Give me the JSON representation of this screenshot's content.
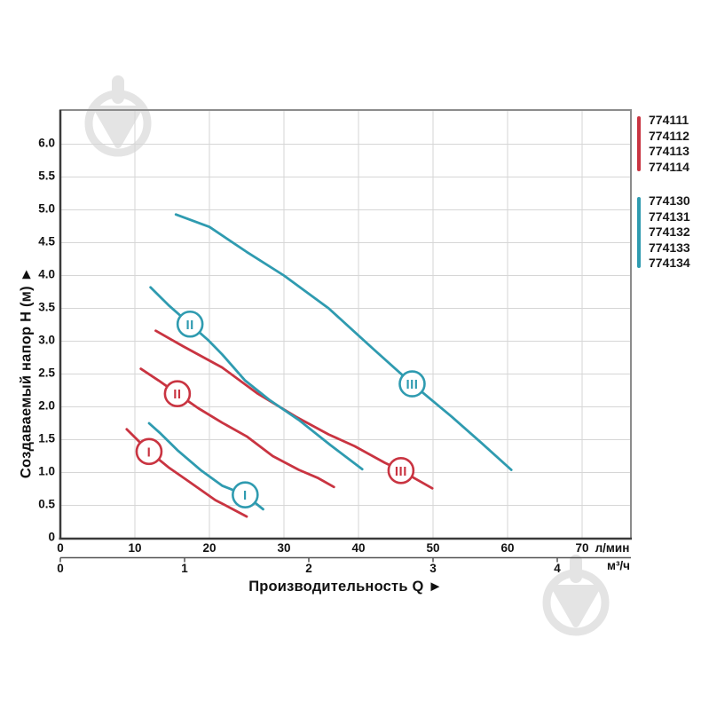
{
  "page": {
    "background": "#ffffff",
    "description_title": ""
  },
  "colors": {
    "red_series": "#c93441",
    "blue_series": "#2f9bb0",
    "grid": "#d6d6d6",
    "outer_border": "#8c8c8c",
    "axis": "#3a3a3a",
    "text": "#111111",
    "watermark": "#e4e4e4"
  },
  "legend": {
    "groups": [
      {
        "color": "#c93441",
        "models": [
          "774111",
          "774112",
          "774113",
          "774114"
        ]
      },
      {
        "color": "#2f9bb0",
        "models": [
          "774130",
          "774131",
          "774132",
          "774133",
          "774134"
        ]
      }
    ]
  },
  "chart_data": {
    "type": "line",
    "title": "",
    "xlabel": "Производительность Q ►",
    "ylabel": "Создаваемый напор H (м) ►",
    "grid": true,
    "x_axis_primary": {
      "unit": "л/мин",
      "tick_labels": [
        "0",
        "10",
        "20",
        "30",
        "40",
        "50",
        "60",
        "70"
      ],
      "tick_values": [
        0,
        10,
        20,
        30,
        40,
        50,
        60,
        70
      ],
      "xlim": [
        0,
        76.5
      ]
    },
    "x_axis_secondary": {
      "unit": "м³/ч",
      "tick_labels": [
        "0",
        "1",
        "2",
        "3",
        "4"
      ],
      "tick_values": [
        0,
        1,
        2,
        3,
        4
      ],
      "tick_values_in_lmin": [
        0,
        16.667,
        33.333,
        50,
        66.667
      ]
    },
    "y_axis": {
      "unit": "м",
      "tick_labels": [
        "0",
        "0.5",
        "1.0",
        "1.5",
        "2.0",
        "2.5",
        "3.0",
        "3.5",
        "4.0",
        "4.5",
        "5.0",
        "5.5",
        "6.0"
      ],
      "tick_values": [
        0,
        0.5,
        1,
        1.5,
        2,
        2.5,
        3,
        3.5,
        4,
        4.5,
        5,
        5.5,
        6
      ],
      "ylim": [
        0,
        6.53
      ]
    },
    "series": [
      {
        "id": "red-speed-I",
        "models": "774111-774114",
        "speed": "I",
        "color": "#c93441",
        "points": [
          [
            8.9,
            1.66
          ],
          [
            11.9,
            1.32
          ],
          [
            14.5,
            1.08
          ],
          [
            16.9,
            0.89
          ],
          [
            20.8,
            0.58
          ],
          [
            23.0,
            0.45
          ],
          [
            25.0,
            0.33
          ]
        ],
        "marker_at": [
          11.9,
          1.32
        ]
      },
      {
        "id": "red-speed-II",
        "models": "774111-774114",
        "speed": "II",
        "color": "#c93441",
        "points": [
          [
            10.8,
            2.58
          ],
          [
            13.2,
            2.4
          ],
          [
            15.7,
            2.2
          ],
          [
            18.5,
            1.98
          ],
          [
            21.7,
            1.76
          ],
          [
            25.0,
            1.55
          ],
          [
            28.5,
            1.25
          ],
          [
            32.0,
            1.04
          ],
          [
            34.5,
            0.92
          ],
          [
            36.7,
            0.78
          ]
        ],
        "marker_at": [
          15.7,
          2.2
        ]
      },
      {
        "id": "red-speed-III",
        "models": "774111-774114",
        "speed": "III",
        "color": "#c93441",
        "points": [
          [
            12.8,
            3.16
          ],
          [
            16.5,
            2.92
          ],
          [
            21.7,
            2.6
          ],
          [
            26.5,
            2.2
          ],
          [
            31.6,
            1.85
          ],
          [
            36.0,
            1.58
          ],
          [
            39.5,
            1.4
          ],
          [
            43.5,
            1.15
          ],
          [
            45.7,
            1.03
          ],
          [
            49.9,
            0.76
          ]
        ],
        "marker_at": [
          45.7,
          1.03
        ]
      },
      {
        "id": "blue-speed-I",
        "models": "774130-774134",
        "speed": "I",
        "color": "#2f9bb0",
        "points": [
          [
            11.9,
            1.75
          ],
          [
            13.3,
            1.61
          ],
          [
            15.7,
            1.34
          ],
          [
            18.9,
            1.03
          ],
          [
            21.7,
            0.8
          ],
          [
            24.8,
            0.66
          ],
          [
            27.2,
            0.44
          ]
        ],
        "marker_at": [
          24.8,
          0.66
        ]
      },
      {
        "id": "blue-speed-II",
        "models": "774130-774134",
        "speed": "II",
        "color": "#2f9bb0",
        "points": [
          [
            12.1,
            3.82
          ],
          [
            14.5,
            3.55
          ],
          [
            17.4,
            3.26
          ],
          [
            19.8,
            3.02
          ],
          [
            21.7,
            2.8
          ],
          [
            24.8,
            2.4
          ],
          [
            28.0,
            2.11
          ],
          [
            32.0,
            1.8
          ],
          [
            36.2,
            1.42
          ],
          [
            40.5,
            1.05
          ]
        ],
        "marker_at": [
          17.4,
          3.26
        ]
      },
      {
        "id": "blue-speed-III",
        "models": "774130-774134",
        "speed": "III",
        "color": "#2f9bb0",
        "points": [
          [
            15.5,
            4.93
          ],
          [
            20.0,
            4.74
          ],
          [
            25.0,
            4.36
          ],
          [
            30.0,
            4.0
          ],
          [
            36.0,
            3.5
          ],
          [
            42.0,
            2.88
          ],
          [
            47.2,
            2.35
          ],
          [
            52.5,
            1.85
          ],
          [
            56.5,
            1.45
          ],
          [
            60.5,
            1.04
          ]
        ],
        "marker_at": [
          47.2,
          2.35
        ]
      }
    ]
  }
}
